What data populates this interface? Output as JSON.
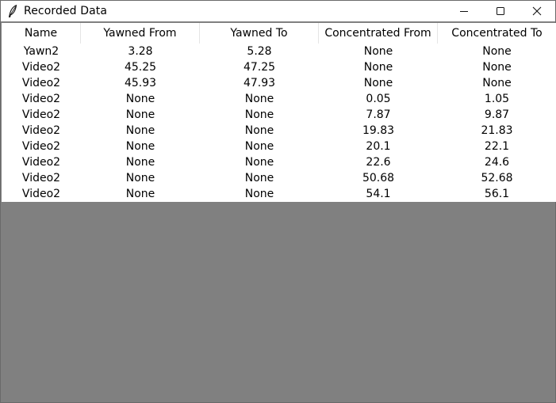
{
  "window": {
    "title": "Recorded Data"
  },
  "table": {
    "columns": [
      "Name",
      "Yawned From",
      "Yawned To",
      "Concentrated From",
      "Concentrated To"
    ],
    "rows": [
      [
        "Yawn2",
        "3.28",
        "5.28",
        "None",
        "None"
      ],
      [
        "Video2",
        "45.25",
        "47.25",
        "None",
        "None"
      ],
      [
        "Video2",
        "45.93",
        "47.93",
        "None",
        "None"
      ],
      [
        "Video2",
        "None",
        "None",
        "0.05",
        "1.05"
      ],
      [
        "Video2",
        "None",
        "None",
        "7.87",
        "9.87"
      ],
      [
        "Video2",
        "None",
        "None",
        "19.83",
        "21.83"
      ],
      [
        "Video2",
        "None",
        "None",
        "20.1",
        "22.1"
      ],
      [
        "Video2",
        "None",
        "None",
        "22.6",
        "24.6"
      ],
      [
        "Video2",
        "None",
        "None",
        "50.68",
        "52.68"
      ],
      [
        "Video2",
        "None",
        "None",
        "54.1",
        "56.1"
      ]
    ]
  },
  "icons": {
    "app": "feather-icon",
    "minimize": "minimize-icon",
    "maximize": "maximize-icon",
    "close": "close-icon"
  }
}
